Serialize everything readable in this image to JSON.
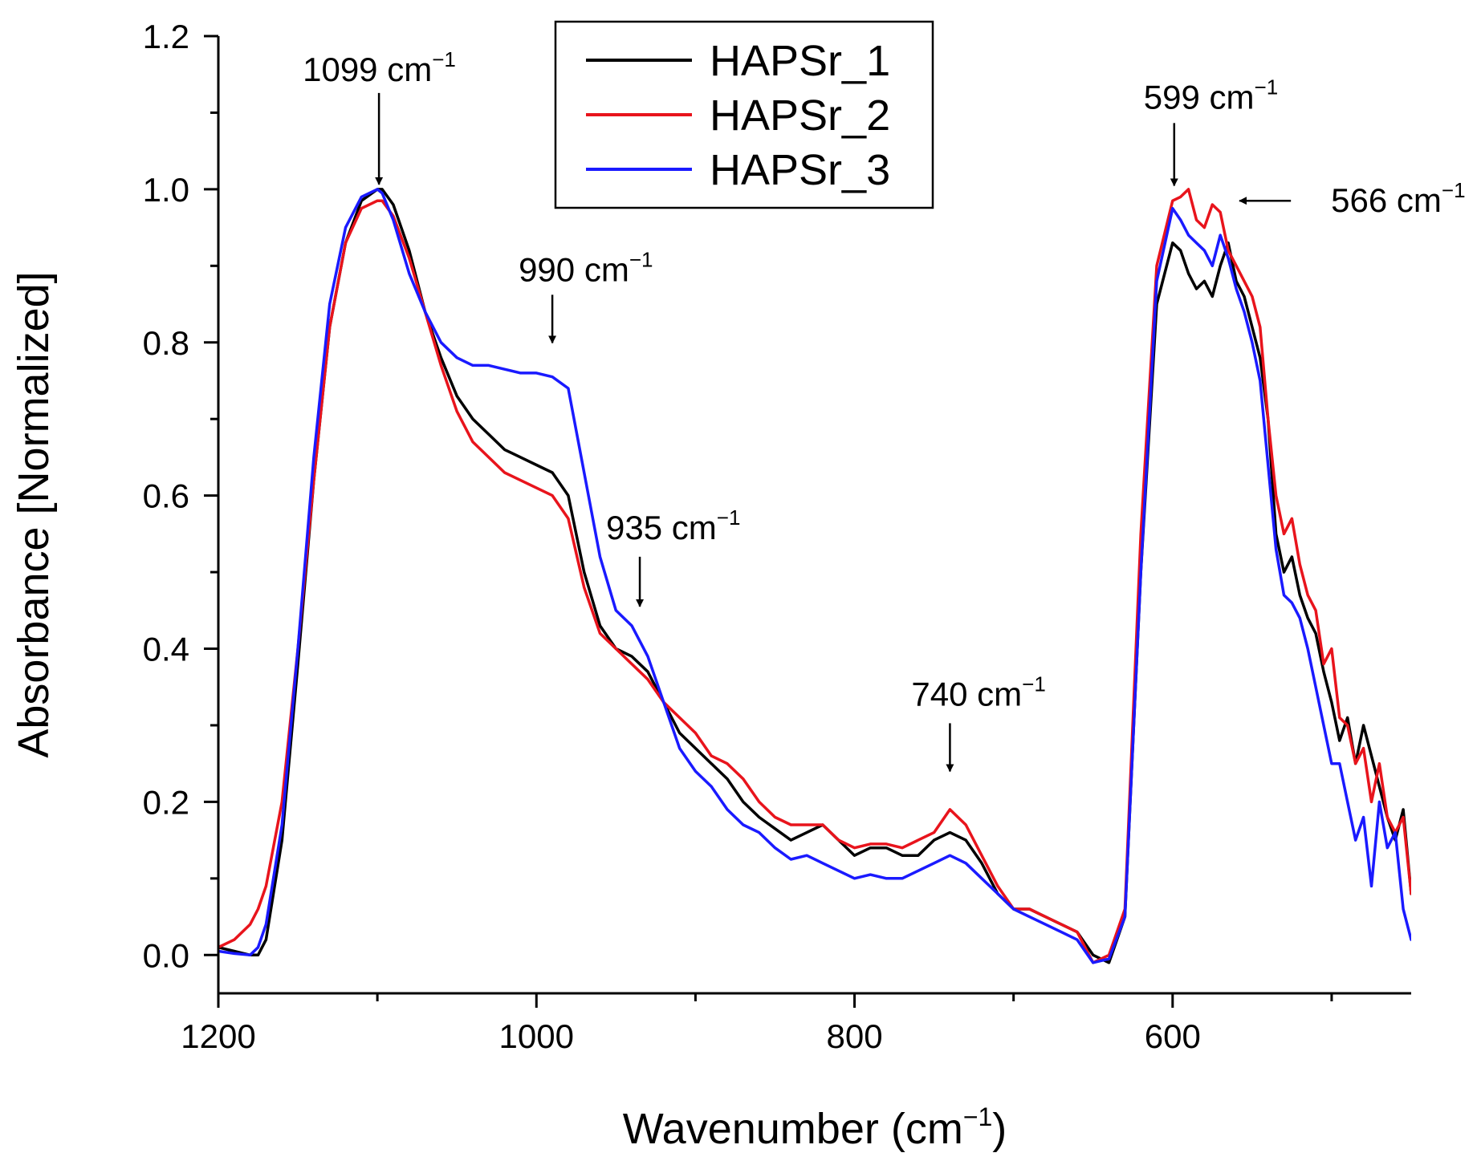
{
  "chart_data": {
    "type": "line",
    "xlabel": "Wavenumber (cm",
    "xlabel_sup": "−1",
    "xlabel_close": ")",
    "ylabel": "Absorbance [Normalized]",
    "xlim": [
      1200,
      450
    ],
    "ylim": [
      -0.05,
      1.2
    ],
    "x_ticks": [
      1200,
      1000,
      800,
      600
    ],
    "x_tick_labels": [
      "1200",
      "1000",
      "800",
      "600"
    ],
    "x_minor_ticks": [
      1100,
      900,
      700,
      500
    ],
    "y_ticks": [
      0.0,
      0.2,
      0.4,
      0.6,
      0.8,
      1.0,
      1.2
    ],
    "y_tick_labels": [
      "0.0",
      "0.2",
      "0.4",
      "0.6",
      "0.8",
      "1.0",
      "1.2"
    ],
    "y_minor_ticks": [
      0.1,
      0.3,
      0.5,
      0.7,
      0.9,
      1.1
    ],
    "legend": {
      "location": "top-center",
      "entries": [
        {
          "name": "HAPSr_1",
          "color": "#000000"
        },
        {
          "name": "HAPSr_2",
          "color": "#e8141c"
        },
        {
          "name": "HAPSr_3",
          "color": "#1a1aff"
        }
      ]
    },
    "series": [
      {
        "name": "HAPSr_1",
        "color": "#000000",
        "x": [
          1200,
          1190,
          1180,
          1175,
          1170,
          1160,
          1150,
          1140,
          1130,
          1120,
          1110,
          1100,
          1097,
          1090,
          1080,
          1070,
          1060,
          1050,
          1040,
          1030,
          1020,
          1010,
          1000,
          990,
          980,
          970,
          960,
          950,
          940,
          930,
          920,
          910,
          900,
          890,
          880,
          870,
          860,
          850,
          840,
          830,
          820,
          810,
          800,
          790,
          780,
          770,
          760,
          750,
          740,
          730,
          720,
          710,
          700,
          690,
          680,
          670,
          660,
          650,
          640,
          630,
          620,
          610,
          600,
          595,
          590,
          585,
          580,
          575,
          570,
          565,
          560,
          555,
          550,
          545,
          540,
          535,
          530,
          525,
          520,
          515,
          510,
          505,
          500,
          495,
          490,
          485,
          480,
          475,
          470,
          465,
          460,
          455,
          450
        ],
        "y": [
          0.01,
          0.005,
          0.0,
          0.0,
          0.02,
          0.15,
          0.38,
          0.62,
          0.82,
          0.93,
          0.985,
          1.0,
          1.0,
          0.98,
          0.92,
          0.84,
          0.78,
          0.73,
          0.7,
          0.68,
          0.66,
          0.65,
          0.64,
          0.63,
          0.6,
          0.5,
          0.43,
          0.4,
          0.39,
          0.37,
          0.33,
          0.29,
          0.27,
          0.25,
          0.23,
          0.2,
          0.18,
          0.165,
          0.15,
          0.16,
          0.17,
          0.15,
          0.13,
          0.14,
          0.14,
          0.13,
          0.13,
          0.15,
          0.16,
          0.15,
          0.12,
          0.08,
          0.06,
          0.06,
          0.05,
          0.04,
          0.03,
          0.0,
          -0.01,
          0.05,
          0.5,
          0.85,
          0.93,
          0.92,
          0.89,
          0.87,
          0.88,
          0.86,
          0.9,
          0.93,
          0.88,
          0.86,
          0.82,
          0.78,
          0.7,
          0.55,
          0.5,
          0.52,
          0.47,
          0.44,
          0.42,
          0.37,
          0.33,
          0.28,
          0.31,
          0.25,
          0.3,
          0.26,
          0.22,
          0.18,
          0.15,
          0.19,
          0.08
        ]
      },
      {
        "name": "HAPSr_2",
        "color": "#e8141c",
        "x": [
          1200,
          1190,
          1180,
          1175,
          1170,
          1160,
          1150,
          1140,
          1130,
          1120,
          1110,
          1100,
          1097,
          1090,
          1080,
          1070,
          1060,
          1050,
          1040,
          1030,
          1020,
          1010,
          1000,
          990,
          980,
          970,
          960,
          950,
          940,
          930,
          920,
          910,
          900,
          890,
          880,
          870,
          860,
          850,
          840,
          830,
          820,
          810,
          800,
          790,
          780,
          770,
          760,
          750,
          740,
          730,
          720,
          710,
          700,
          690,
          680,
          670,
          660,
          650,
          640,
          630,
          620,
          610,
          600,
          595,
          590,
          585,
          580,
          575,
          570,
          565,
          560,
          555,
          550,
          545,
          540,
          535,
          530,
          525,
          520,
          515,
          510,
          505,
          500,
          495,
          490,
          485,
          480,
          475,
          470,
          465,
          460,
          455,
          450
        ],
        "y": [
          0.01,
          0.02,
          0.04,
          0.06,
          0.09,
          0.2,
          0.4,
          0.62,
          0.82,
          0.93,
          0.975,
          0.985,
          0.985,
          0.965,
          0.91,
          0.84,
          0.77,
          0.71,
          0.67,
          0.65,
          0.63,
          0.62,
          0.61,
          0.6,
          0.57,
          0.48,
          0.42,
          0.4,
          0.38,
          0.36,
          0.33,
          0.31,
          0.29,
          0.26,
          0.25,
          0.23,
          0.2,
          0.18,
          0.17,
          0.17,
          0.17,
          0.15,
          0.14,
          0.145,
          0.145,
          0.14,
          0.15,
          0.16,
          0.19,
          0.17,
          0.13,
          0.09,
          0.06,
          0.06,
          0.05,
          0.04,
          0.03,
          -0.01,
          0.0,
          0.06,
          0.55,
          0.9,
          0.985,
          0.99,
          1.0,
          0.96,
          0.95,
          0.98,
          0.97,
          0.92,
          0.9,
          0.88,
          0.86,
          0.82,
          0.7,
          0.6,
          0.55,
          0.57,
          0.51,
          0.47,
          0.45,
          0.38,
          0.4,
          0.31,
          0.3,
          0.25,
          0.27,
          0.2,
          0.25,
          0.18,
          0.16,
          0.18,
          0.08
        ]
      },
      {
        "name": "HAPSr_3",
        "color": "#1a1aff",
        "x": [
          1200,
          1190,
          1180,
          1175,
          1170,
          1160,
          1150,
          1140,
          1130,
          1120,
          1110,
          1100,
          1097,
          1090,
          1080,
          1070,
          1060,
          1050,
          1040,
          1030,
          1020,
          1010,
          1000,
          990,
          980,
          970,
          960,
          950,
          940,
          930,
          920,
          910,
          900,
          890,
          880,
          870,
          860,
          850,
          840,
          830,
          820,
          810,
          800,
          790,
          780,
          770,
          760,
          750,
          740,
          730,
          720,
          710,
          700,
          690,
          680,
          670,
          660,
          650,
          640,
          630,
          620,
          610,
          600,
          595,
          590,
          585,
          580,
          575,
          570,
          565,
          560,
          555,
          550,
          545,
          540,
          535,
          530,
          525,
          520,
          515,
          510,
          505,
          500,
          495,
          490,
          485,
          480,
          475,
          470,
          465,
          460,
          455,
          450
        ],
        "y": [
          0.005,
          0.002,
          0.0,
          0.01,
          0.04,
          0.17,
          0.4,
          0.65,
          0.85,
          0.95,
          0.99,
          1.0,
          0.995,
          0.96,
          0.89,
          0.84,
          0.8,
          0.78,
          0.77,
          0.77,
          0.765,
          0.76,
          0.76,
          0.755,
          0.74,
          0.63,
          0.52,
          0.45,
          0.43,
          0.39,
          0.33,
          0.27,
          0.24,
          0.22,
          0.19,
          0.17,
          0.16,
          0.14,
          0.125,
          0.13,
          0.12,
          0.11,
          0.1,
          0.105,
          0.1,
          0.1,
          0.11,
          0.12,
          0.13,
          0.12,
          0.1,
          0.08,
          0.06,
          0.05,
          0.04,
          0.03,
          0.02,
          -0.01,
          -0.005,
          0.05,
          0.5,
          0.88,
          0.975,
          0.96,
          0.94,
          0.93,
          0.92,
          0.9,
          0.94,
          0.91,
          0.87,
          0.84,
          0.8,
          0.75,
          0.64,
          0.53,
          0.47,
          0.46,
          0.44,
          0.4,
          0.35,
          0.3,
          0.25,
          0.25,
          0.2,
          0.15,
          0.18,
          0.09,
          0.2,
          0.14,
          0.16,
          0.06,
          0.02
        ]
      }
    ],
    "annotations": [
      {
        "label": "1099 cm",
        "sup": "−1",
        "x": 1099,
        "y": 1.0,
        "arrow": "down"
      },
      {
        "label": "990 cm",
        "sup": "−1",
        "x": 990,
        "y": 0.77,
        "arrow": "down"
      },
      {
        "label": "935 cm",
        "sup": "−1",
        "x": 935,
        "y": 0.43,
        "arrow": "down"
      },
      {
        "label": "740 cm",
        "sup": "−1",
        "x": 740,
        "y": 0.2,
        "arrow": "down"
      },
      {
        "label": "599 cm",
        "sup": "−1",
        "x": 599,
        "y": 0.99,
        "arrow": "down"
      },
      {
        "label": "566 cm",
        "sup": "−1",
        "x": 566,
        "y": 0.985,
        "arrow": "left"
      }
    ]
  }
}
